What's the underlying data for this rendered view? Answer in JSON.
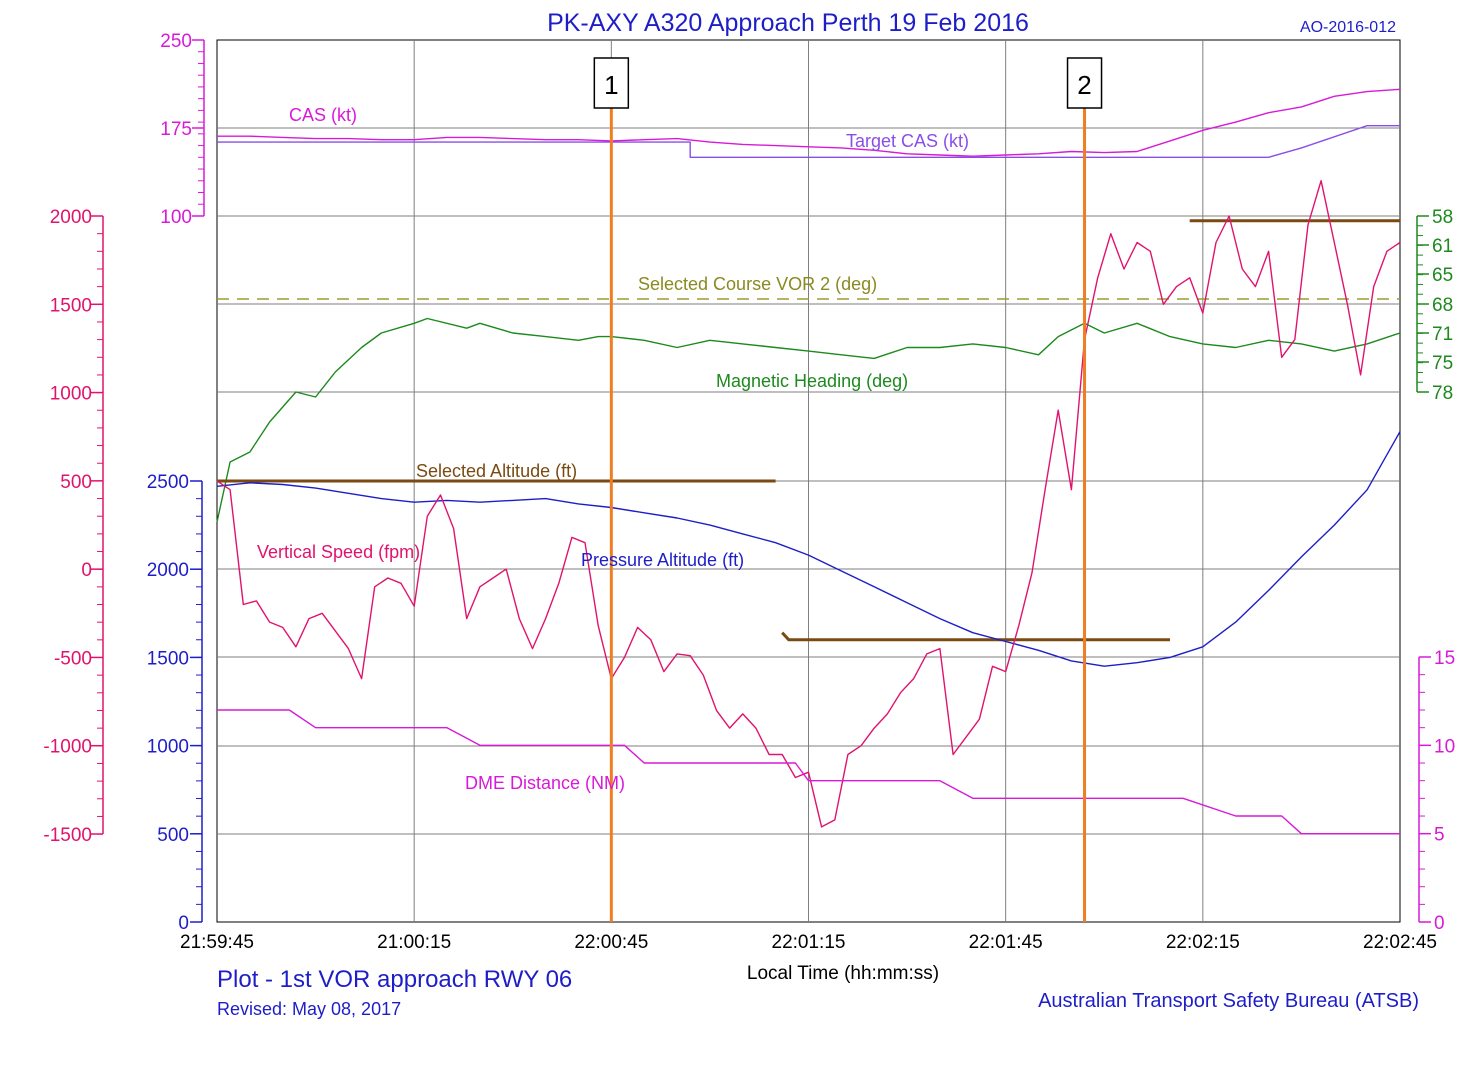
{
  "chart_data": {
    "type": "line",
    "title": "PK-AXY  A320 Approach Perth 19 Feb 2016",
    "report_id": "AO-2016-012",
    "xlabel": "Local Time (hh:mm:ss)",
    "x_ticks": [
      "21:59:45",
      "21:00:15",
      "22:00:45",
      "22:01:15",
      "22:01:45",
      "22:02:15",
      "22:02:45"
    ],
    "x_range_s": [
      0,
      180
    ],
    "footer": {
      "plot_title": "Plot - 1st VOR approach RWY 06",
      "revised": "Revised: May 08, 2017",
      "agency": "Australian Transport Safety Bureau (ATSB)"
    },
    "grid": true,
    "markers": [
      {
        "label": "1",
        "t": 60
      },
      {
        "label": "2",
        "t": 132
      }
    ],
    "axes": {
      "cas": {
        "ticks": [
          250,
          175,
          100
        ],
        "range": [
          100,
          250
        ],
        "color": "#d81ad8"
      },
      "vertical_speed": {
        "ticks": [
          2000,
          1500,
          1000,
          500,
          0,
          -500,
          -1000,
          -1500
        ],
        "range": [
          -1500,
          2000
        ],
        "color": "#e0136e"
      },
      "altitude": {
        "ticks": [
          2500,
          2000,
          1500,
          1000,
          500,
          0
        ],
        "range": [
          0,
          2500
        ],
        "color": "#1e1ec8"
      },
      "heading": {
        "ticks": [
          58,
          61,
          65,
          68,
          71,
          75,
          78
        ],
        "color": "#1d8a1d"
      },
      "dme": {
        "ticks": [
          15,
          10,
          5,
          0
        ],
        "range": [
          0,
          15
        ],
        "color": "#d81ad8"
      }
    },
    "series": [
      {
        "name": "CAS (kt)",
        "axis": "cas",
        "color": "#d81ad8",
        "x": [
          0,
          5,
          10,
          15,
          20,
          25,
          30,
          35,
          40,
          45,
          50,
          55,
          60,
          65,
          70,
          75,
          80,
          85,
          90,
          95,
          100,
          105,
          110,
          115,
          120,
          125,
          130,
          135,
          140,
          145,
          150,
          155,
          160,
          165,
          170,
          175,
          180
        ],
        "y": [
          168,
          168,
          167,
          166,
          166,
          165,
          165,
          167,
          167,
          166,
          165,
          165,
          164,
          165,
          166,
          163,
          161,
          160,
          159,
          158,
          156,
          153,
          152,
          151,
          152,
          153,
          155,
          154,
          155,
          164,
          173,
          180,
          188,
          193,
          202,
          206,
          208
        ]
      },
      {
        "name": "Target CAS (kt)",
        "axis": "cas",
        "color": "#8a4ee8",
        "x": [
          0,
          72,
          72,
          160,
          160,
          165,
          175,
          180
        ],
        "y": [
          163,
          163,
          150,
          150,
          150,
          158,
          177,
          177
        ]
      },
      {
        "name": "Selected Course VOR 2 (deg)",
        "axis": "heading",
        "color": "#9b9b2e",
        "dashed": true,
        "x": [
          0,
          180
        ],
        "y": [
          67.5,
          67.5
        ]
      },
      {
        "name": "Magnetic Heading (deg)",
        "axis": "heading",
        "color": "#1d8a1d",
        "x": [
          0,
          2,
          5,
          8,
          12,
          15,
          18,
          22,
          25,
          30,
          32,
          38,
          40,
          45,
          50,
          55,
          58,
          60,
          65,
          70,
          75,
          80,
          85,
          90,
          95,
          100,
          105,
          110,
          115,
          120,
          125,
          128,
          132,
          135,
          140,
          145,
          150,
          155,
          160,
          165,
          170,
          175,
          180
        ],
        "y": [
          91,
          85,
          84,
          81,
          78,
          78.5,
          76,
          73,
          71,
          70,
          69.5,
          70.5,
          70,
          71,
          71.5,
          72,
          71.5,
          71.5,
          72,
          73,
          72,
          72.5,
          73,
          73.5,
          74,
          74.5,
          73,
          73,
          72.5,
          73,
          74,
          71.5,
          70,
          71,
          70,
          71.5,
          72.5,
          73,
          72,
          72.5,
          73.5,
          72.5,
          71
        ]
      },
      {
        "name": "Selected Altitude (ft)",
        "axis": "altitude",
        "color": "#7a4a12",
        "segments": [
          {
            "x": [
              0,
              85
            ],
            "y": [
              2500,
              2500
            ]
          },
          {
            "x": [
              86,
              87,
              145
            ],
            "y": [
              1640,
              1600,
              1600
            ]
          }
        ]
      },
      {
        "name": "Selected Altitude (ft)",
        "axis": "heading",
        "color": "#7a4a12",
        "show_label": false,
        "segments": [
          {
            "x": [
              148,
              180
            ],
            "y": [
              58.5,
              58.5
            ]
          }
        ]
      },
      {
        "name": "Pressure Altitude (ft)",
        "axis": "altitude",
        "color": "#1e1ec8",
        "x": [
          0,
          5,
          10,
          15,
          20,
          25,
          30,
          35,
          40,
          45,
          50,
          55,
          60,
          65,
          70,
          75,
          80,
          85,
          90,
          95,
          100,
          105,
          110,
          115,
          120,
          125,
          130,
          135,
          140,
          145,
          150,
          155,
          160,
          165,
          170,
          175,
          180
        ],
        "y": [
          2470,
          2490,
          2480,
          2460,
          2430,
          2400,
          2380,
          2390,
          2380,
          2390,
          2400,
          2370,
          2350,
          2320,
          2290,
          2250,
          2200,
          2150,
          2080,
          1990,
          1900,
          1810,
          1720,
          1640,
          1590,
          1540,
          1480,
          1450,
          1470,
          1500,
          1560,
          1700,
          1880,
          2070,
          2250,
          2450,
          2780
        ]
      },
      {
        "name": "Vertical Speed (fpm)",
        "axis": "vertical_speed",
        "color": "#e0136e",
        "x": [
          0,
          2,
          4,
          6,
          8,
          10,
          12,
          14,
          16,
          18,
          20,
          22,
          24,
          26,
          28,
          30,
          32,
          34,
          36,
          38,
          40,
          42,
          44,
          46,
          48,
          50,
          52,
          54,
          56,
          58,
          60,
          62,
          64,
          66,
          68,
          70,
          72,
          74,
          76,
          78,
          80,
          82,
          84,
          86,
          88,
          90,
          92,
          94,
          96,
          98,
          100,
          102,
          104,
          106,
          108,
          110,
          112,
          114,
          116,
          118,
          120,
          122,
          124,
          126,
          128,
          130,
          132,
          134,
          136,
          138,
          140,
          142,
          144,
          146,
          148,
          150,
          152,
          154,
          156,
          158,
          160,
          162,
          164,
          166,
          168,
          170,
          172,
          174,
          176,
          178,
          180
        ],
        "y": [
          500,
          450,
          -200,
          -180,
          -300,
          -330,
          -440,
          -280,
          -250,
          -350,
          -450,
          -620,
          -100,
          -50,
          -80,
          -210,
          300,
          420,
          230,
          -280,
          -100,
          -50,
          0,
          -280,
          -450,
          -280,
          -80,
          180,
          150,
          -320,
          -620,
          -500,
          -330,
          -400,
          -580,
          -480,
          -490,
          -600,
          -800,
          -900,
          -820,
          -900,
          -1050,
          -1050,
          -1180,
          -1150,
          -1460,
          -1420,
          -1050,
          -1000,
          -900,
          -820,
          -700,
          -620,
          -480,
          -450,
          -1050,
          -950,
          -850,
          -550,
          -580,
          -320,
          -20,
          450,
          900,
          450,
          1300,
          1650,
          1900,
          1700,
          1850,
          1800,
          1500,
          1600,
          1650,
          1450,
          1850,
          2000,
          1700,
          1600,
          1800,
          1200,
          1300,
          1950,
          2200,
          1850,
          1500,
          1100,
          1600,
          1800,
          1850
        ]
      },
      {
        "name": "DME Distance (NM)",
        "axis": "dme",
        "color": "#d81ad8",
        "x": [
          0,
          11,
          15,
          35,
          40,
          60,
          62,
          65,
          85,
          88,
          90,
          110,
          115,
          145,
          147,
          155,
          160,
          162,
          165,
          180
        ],
        "y": [
          12,
          12,
          11,
          11,
          10,
          10,
          10,
          9,
          9,
          9,
          8,
          8,
          7,
          7,
          7,
          6,
          6,
          6,
          5,
          5
        ]
      }
    ],
    "labels": {
      "cas": "CAS (kt)",
      "target_cas": "Target CAS (kt)",
      "selected_course": "Selected Course VOR 2 (deg)",
      "magnetic_heading": "Magnetic Heading (deg)",
      "selected_altitude": "Selected Altitude (ft)",
      "vertical_speed": "Vertical Speed (fpm)",
      "pressure_altitude": "Pressure Altitude (ft)",
      "dme": "DME Distance (NM)"
    }
  }
}
